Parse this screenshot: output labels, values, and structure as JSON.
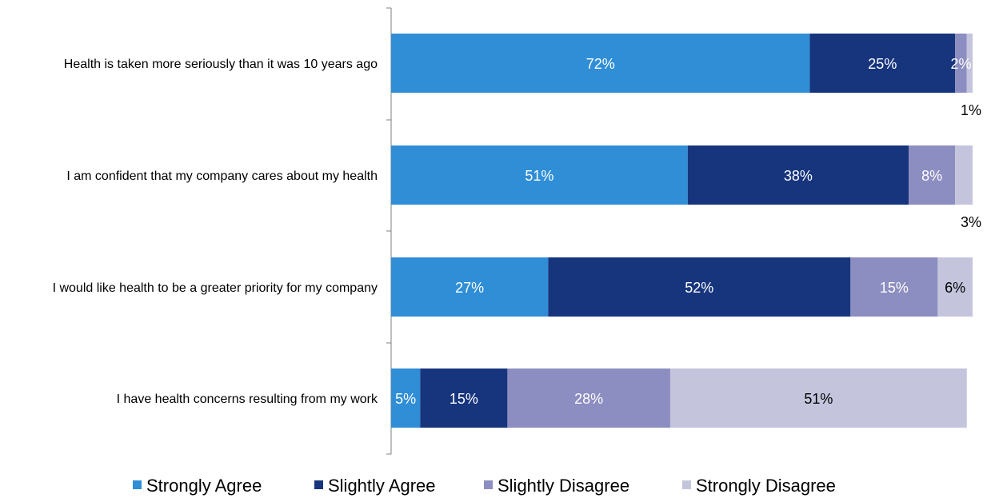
{
  "chart_data": {
    "type": "bar",
    "orientation": "horizontal",
    "stacked": true,
    "categories": [
      "Health is taken more seriously than it was 10 years ago",
      "I am confident that my company cares about my health",
      "I would like health to be a greater priority for my company",
      "I have health concerns resulting from my work"
    ],
    "series": [
      {
        "name": "Strongly Agree",
        "color": "#2F8ED6",
        "values": [
          72,
          51,
          27,
          5
        ]
      },
      {
        "name": "Slightly Agree",
        "color": "#17357D",
        "values": [
          25,
          38,
          52,
          15
        ]
      },
      {
        "name": "Slightly Disagree",
        "color": "#8C8DC0",
        "values": [
          2,
          8,
          15,
          28
        ]
      },
      {
        "name": "Strongly Disagree",
        "color": "#C4C5DD",
        "values": [
          1,
          3,
          6,
          51
        ]
      }
    ],
    "value_suffix": "%",
    "xlim": [
      0,
      100
    ],
    "grid": false,
    "legend_position": "bottom"
  }
}
